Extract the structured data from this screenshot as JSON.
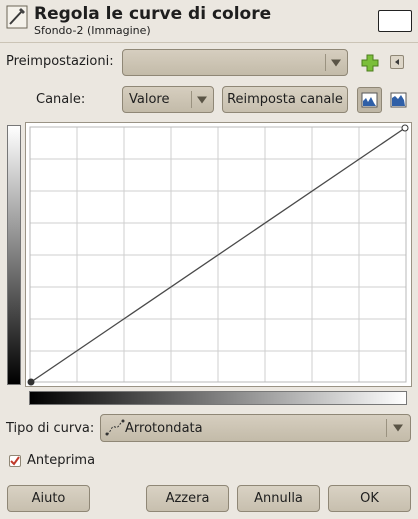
{
  "header": {
    "title": "Regola le curve di colore",
    "subtitle": "Sfondo-2 (Immagine)"
  },
  "presets": {
    "label": "Preimpostazioni:",
    "value": ""
  },
  "channel": {
    "label": "Canale:",
    "value": "Valore",
    "reset_label": "Reimposta canale"
  },
  "curve_type": {
    "label": "Tipo di curva:",
    "value": "Arrotondata"
  },
  "preview": {
    "label": "Anteprima",
    "checked": true
  },
  "buttons": {
    "help": "Aiuto",
    "reset": "Azzera",
    "cancel": "Annulla",
    "ok": "OK"
  },
  "colors": {
    "background": "#ebe7e0",
    "button": "#cfc7b7",
    "add_icon": "#7bbf3a",
    "checkbox_mark": "#c03a2b"
  },
  "icons": {
    "add_preset": "plus-icon",
    "preset_menu": "triangle-left-icon",
    "linear_histogram": "linear-histogram-icon",
    "log_histogram": "log-histogram-icon",
    "curve_type": "curve-icon"
  }
}
